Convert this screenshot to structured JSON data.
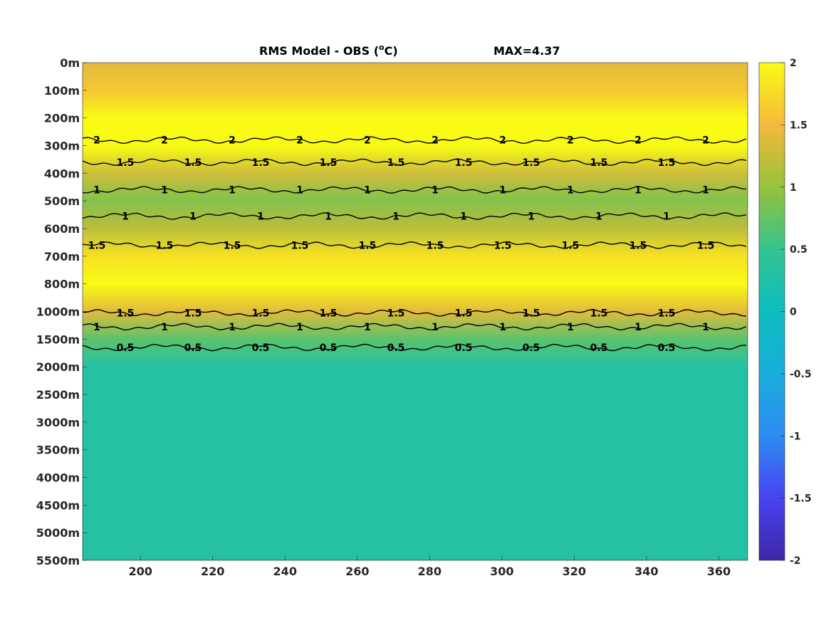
{
  "chart_data": {
    "type": "heatmap",
    "title": "RMS Model - OBS (",
    "title_sup": "o",
    "title_suffix": "C)",
    "max_label": "MAX=4.37",
    "x_ticks": [
      200,
      220,
      240,
      260,
      280,
      300,
      320,
      340,
      360
    ],
    "xlim": [
      184,
      368
    ],
    "y_tick_labels": [
      "0m",
      "100m",
      "200m",
      "300m",
      "400m",
      "500m",
      "600m",
      "700m",
      "800m",
      "1000m",
      "1500m",
      "2000m",
      "2500m",
      "3000m",
      "3500m",
      "4000m",
      "4500m",
      "5000m",
      "5500m"
    ],
    "colorbar": {
      "ticks": [
        2,
        1.5,
        1,
        0.5,
        0,
        -0.5,
        -1,
        -1.5,
        -2
      ],
      "clim": [
        -2,
        2
      ],
      "colormap": "parula"
    },
    "depth_profile": [
      {
        "depth": "0m",
        "value": 1.4
      },
      {
        "depth": "100m",
        "value": 1.6
      },
      {
        "depth": "200m",
        "value": 2.2
      },
      {
        "depth": "300m",
        "value": 2.0
      },
      {
        "depth": "400m",
        "value": 1.3
      },
      {
        "depth": "500m",
        "value": 0.9
      },
      {
        "depth": "600m",
        "value": 1.2
      },
      {
        "depth": "700m",
        "value": 1.8
      },
      {
        "depth": "800m",
        "value": 2.0
      },
      {
        "depth": "1000m",
        "value": 1.4
      },
      {
        "depth": "1500m",
        "value": 0.7
      },
      {
        "depth": "2000m",
        "value": 0.3
      },
      {
        "depth": "5500m",
        "value": 0.3
      }
    ],
    "contours": [
      {
        "level": 2,
        "label": "2",
        "depth_index": 2.8
      },
      {
        "level": 1.5,
        "label": "1.5",
        "depth_index": 3.6
      },
      {
        "level": 1,
        "label": "1",
        "depth_index": 4.6
      },
      {
        "level": 1,
        "label": "1",
        "depth_index": 5.55
      },
      {
        "level": 1.5,
        "label": "1.5",
        "depth_index": 6.6
      },
      {
        "level": 1.5,
        "label": "1.5",
        "depth_index": 9.05
      },
      {
        "level": 1,
        "label": "1",
        "depth_index": 9.55
      },
      {
        "level": 0.5,
        "label": "0.5",
        "depth_index": 10.3
      }
    ]
  },
  "colors": {
    "yellow": "#f9fb15",
    "orange": "#f8ba43",
    "green": "#79bf5a",
    "teal": "#34c297"
  }
}
